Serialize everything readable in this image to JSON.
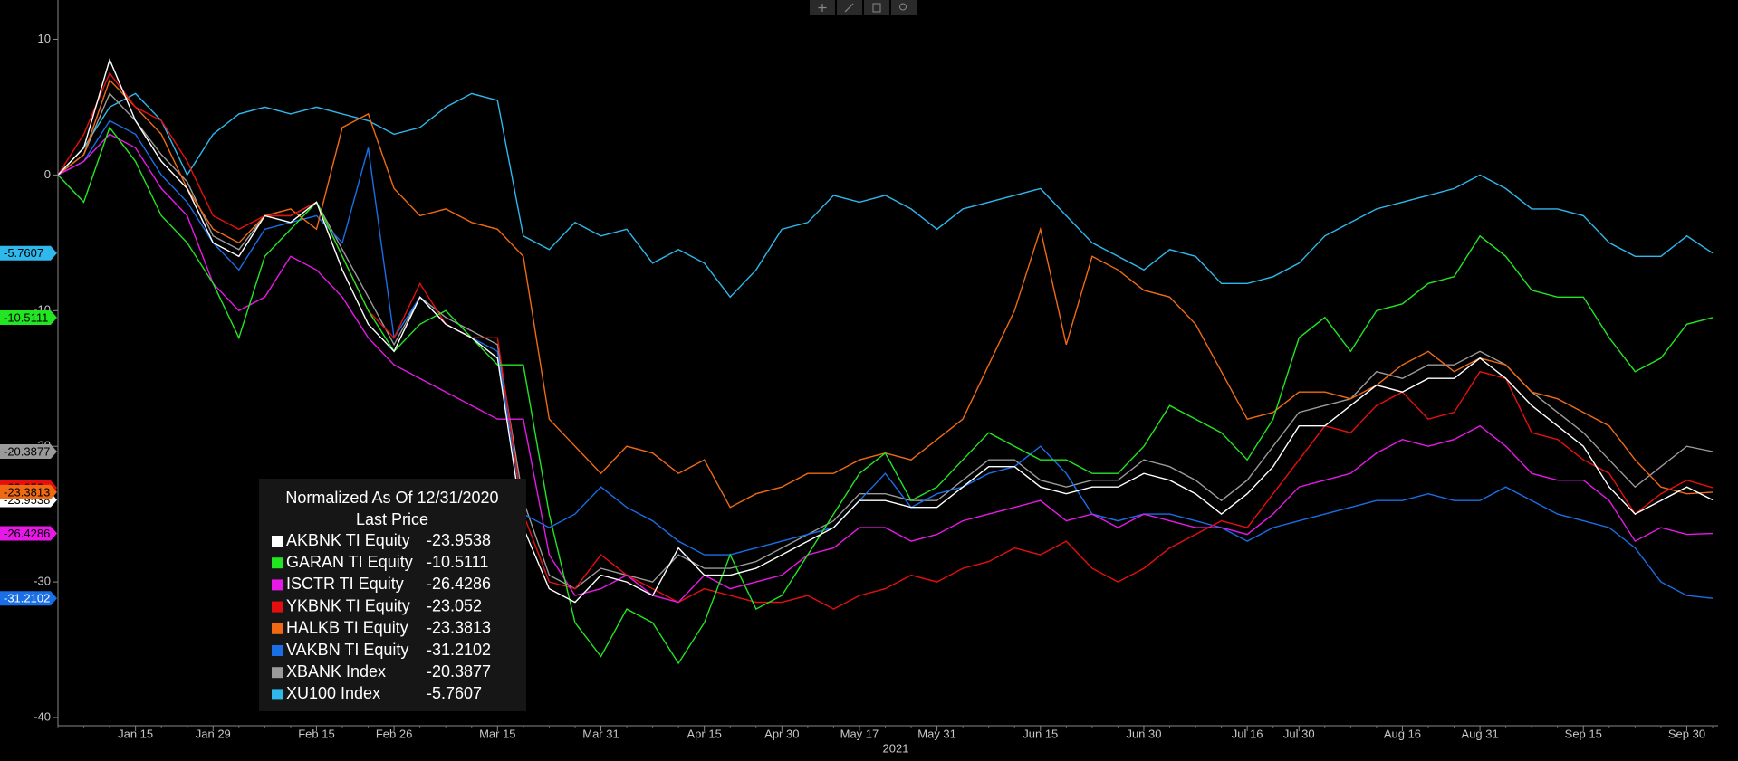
{
  "chart_data": {
    "type": "line",
    "legend_title": "Normalized As Of 12/31/2020",
    "legend_subtitle": "Last Price",
    "x_year_label": "2021",
    "categories": [
      null,
      null,
      null,
      "Jan 15",
      null,
      null,
      "Jan 29",
      null,
      null,
      null,
      "Feb 15",
      null,
      null,
      "Feb 26",
      null,
      null,
      null,
      "Mar 15",
      null,
      null,
      null,
      "Mar 31",
      null,
      null,
      null,
      "Apr 15",
      null,
      null,
      "Apr 30",
      null,
      null,
      "May 17",
      null,
      null,
      "May 31",
      null,
      null,
      null,
      "Jun 15",
      null,
      null,
      null,
      "Jun 30",
      null,
      null,
      null,
      "Jul 16",
      null,
      "Jul 30",
      null,
      null,
      null,
      "Aug 16",
      null,
      null,
      "Aug 31",
      null,
      null,
      null,
      "Sep 15",
      null,
      null,
      null,
      "Sep 30",
      null
    ],
    "ylim": [
      -40.6,
      12.9
    ],
    "yticks": [
      10,
      0,
      -10,
      -20,
      -30,
      -40
    ],
    "grid": false,
    "series": [
      {
        "name": "AKBNK TI Equity",
        "color": "#ffffff",
        "values": [
          0,
          2,
          8.5,
          4,
          1,
          -1,
          -5,
          -6,
          -3,
          -3.5,
          -2,
          -7,
          -11,
          -13,
          -9,
          -11,
          -12,
          -13.5,
          -26,
          -30.5,
          -31.5,
          -29.5,
          -30,
          -31,
          -27.5,
          -29.5,
          -29.5,
          -29,
          -28,
          -27,
          -26,
          -24,
          -24,
          -24.5,
          -24.5,
          -23,
          -21.5,
          -21.5,
          -23,
          -23.5,
          -23,
          -23,
          -22,
          -22.5,
          -23.5,
          -25,
          -23.5,
          -21.5,
          -18.5,
          -18.5,
          -17,
          -15.5,
          -16,
          -15,
          -15,
          -13.5,
          -15,
          -17,
          -18.5,
          -20,
          -23,
          -25,
          -24,
          -23,
          -23.9538
        ]
      },
      {
        "name": "GARAN TI Equity",
        "color": "#22e622",
        "values": [
          0,
          -2,
          3.5,
          1,
          -3,
          -5,
          -8,
          -12,
          -6,
          -4,
          -2,
          -6,
          -10,
          -13,
          -11,
          -10,
          -12,
          -14,
          -14,
          -25,
          -33,
          -35.5,
          -32,
          -33,
          -36,
          -33,
          -28,
          -32,
          -31,
          -28,
          -25,
          -22,
          -20.5,
          -24,
          -23,
          -21,
          -19,
          -20,
          -21,
          -21,
          -22,
          -22,
          -20,
          -17,
          -18,
          -19,
          -21,
          -18,
          -12,
          -10.5,
          -13,
          -10,
          -9.5,
          -8,
          -7.5,
          -4.5,
          -6,
          -8.5,
          -9,
          -9,
          -12,
          -14.5,
          -13.5,
          -11,
          -10.5111
        ]
      },
      {
        "name": "ISCTR TI Equity",
        "color": "#e619e6",
        "values": [
          0,
          1,
          3,
          2,
          -1,
          -3,
          -8,
          -10,
          -9,
          -6,
          -7,
          -9,
          -12,
          -14,
          -15,
          -16,
          -17,
          -18,
          -18,
          -28,
          -31,
          -30.5,
          -29.5,
          -31,
          -31.5,
          -29.5,
          -30.5,
          -30,
          -29.5,
          -28,
          -27.5,
          -26,
          -26,
          -27,
          -26.5,
          -25.5,
          -25,
          -24.5,
          -24,
          -25.5,
          -25,
          -26,
          -25,
          -25.5,
          -26,
          -26,
          -26.5,
          -25,
          -23,
          -22.5,
          -22,
          -20.5,
          -19.5,
          -20,
          -19.5,
          -18.5,
          -20,
          -22,
          -22.5,
          -22.5,
          -24,
          -27,
          -26,
          -26.5,
          -26.4286
        ]
      },
      {
        "name": "YKBNK TI Equity",
        "color": "#e60f0f",
        "values": [
          0,
          3,
          7.5,
          5,
          4,
          1,
          -3,
          -4,
          -3,
          -3,
          -2,
          -6,
          -10,
          -12,
          -8,
          -11,
          -12,
          -12,
          -25,
          -30,
          -30.5,
          -28,
          -29.5,
          -30.5,
          -31.5,
          -30.5,
          -31,
          -31.5,
          -31.5,
          -31,
          -32,
          -31,
          -30.5,
          -29.5,
          -30,
          -29,
          -28.5,
          -27.5,
          -28,
          -27,
          -29,
          -30,
          -29,
          -27.5,
          -26.5,
          -25.5,
          -26,
          -23.5,
          -21,
          -18.5,
          -19,
          -17,
          -16,
          -18,
          -17.5,
          -14.5,
          -15,
          -19,
          -19.5,
          -21,
          -22,
          -25,
          -23.5,
          -22.5,
          -23.052
        ]
      },
      {
        "name": "HALKB TI Equity",
        "color": "#f06a14",
        "values": [
          0,
          1.5,
          7,
          5,
          3,
          -1,
          -4,
          -5,
          -3,
          -2.5,
          -4,
          3.5,
          4.5,
          -1,
          -3,
          -2.5,
          -3.5,
          -4,
          -6,
          -18,
          -20,
          -22,
          -20,
          -20.5,
          -22,
          -21,
          -24.5,
          -23.5,
          -23,
          -22,
          -22,
          -21,
          -20.5,
          -21,
          -19.5,
          -18,
          -14,
          -10,
          -4,
          -12.5,
          -6,
          -7,
          -8.5,
          -9,
          -11,
          -14.5,
          -18,
          -17.5,
          -16,
          -16,
          -16.5,
          -15.5,
          -14,
          -13,
          -14.5,
          -13.5,
          -14,
          -16,
          -16.5,
          -17.5,
          -18.5,
          -21,
          -23,
          -23.5,
          -23.3813
        ]
      },
      {
        "name": "VAKBN TI Equity",
        "color": "#1a6ee6",
        "values": [
          0,
          1,
          4,
          3,
          0,
          -2,
          -5,
          -7,
          -4,
          -3.5,
          -3,
          -5,
          2,
          -12,
          -9,
          -11,
          -12,
          -13,
          -25,
          -26,
          -25,
          -23,
          -24.5,
          -25.5,
          -27,
          -28,
          -28,
          -27.5,
          -27,
          -26.5,
          -26,
          -24,
          -22,
          -24.5,
          -23.5,
          -23,
          -22,
          -21.5,
          -20,
          -22,
          -25,
          -25.5,
          -25,
          -25,
          -25.5,
          -26,
          -27,
          -26,
          -25.5,
          -25,
          -24.5,
          -24,
          -24,
          -23.5,
          -24,
          -24,
          -23,
          -24,
          -25,
          -25.5,
          -26,
          -27.5,
          -30,
          -31,
          -31.2102
        ]
      },
      {
        "name": "XBANK Index",
        "color": "#9a9a9a",
        "values": [
          0,
          1.5,
          6,
          4,
          1.5,
          -0.5,
          -4.5,
          -5.5,
          -3,
          -3,
          -2,
          -5.5,
          -9,
          -12.5,
          -9,
          -10.5,
          -11.5,
          -12.5,
          -24,
          -29.5,
          -30.5,
          -29,
          -29.5,
          -30,
          -28,
          -29,
          -29,
          -28.5,
          -27.5,
          -26.5,
          -25.5,
          -23.5,
          -23.5,
          -24,
          -24,
          -22.5,
          -21,
          -21,
          -22.5,
          -23,
          -22.5,
          -22.5,
          -21,
          -21.5,
          -22.5,
          -24,
          -22.5,
          -20,
          -17.5,
          -17,
          -16.5,
          -14.5,
          -15,
          -14,
          -14,
          -13,
          -14,
          -16,
          -17.5,
          -19,
          -21,
          -23,
          -21.5,
          -20,
          -20.3877
        ]
      },
      {
        "name": "XU100 Index",
        "color": "#2eb8ec",
        "values": [
          0,
          2,
          5,
          6,
          4,
          0,
          3,
          4.5,
          5,
          4.5,
          5,
          4.5,
          4,
          3,
          3.5,
          5,
          6,
          5.5,
          -4.5,
          -5.5,
          -3.5,
          -4.5,
          -4,
          -6.5,
          -5.5,
          -6.5,
          -9,
          -7,
          -4,
          -3.5,
          -1.5,
          -2,
          -1.5,
          -2.5,
          -4,
          -2.5,
          -2,
          -1.5,
          -1,
          -3,
          -5,
          -6,
          -7,
          -5.5,
          -6,
          -8,
          -8,
          -7.5,
          -6.5,
          -4.5,
          -3.5,
          -2.5,
          -2,
          -1.5,
          -1,
          0,
          -1,
          -2.5,
          -2.5,
          -3,
          -5,
          -6,
          -6,
          -4.5,
          -5.7607
        ]
      }
    ]
  }
}
